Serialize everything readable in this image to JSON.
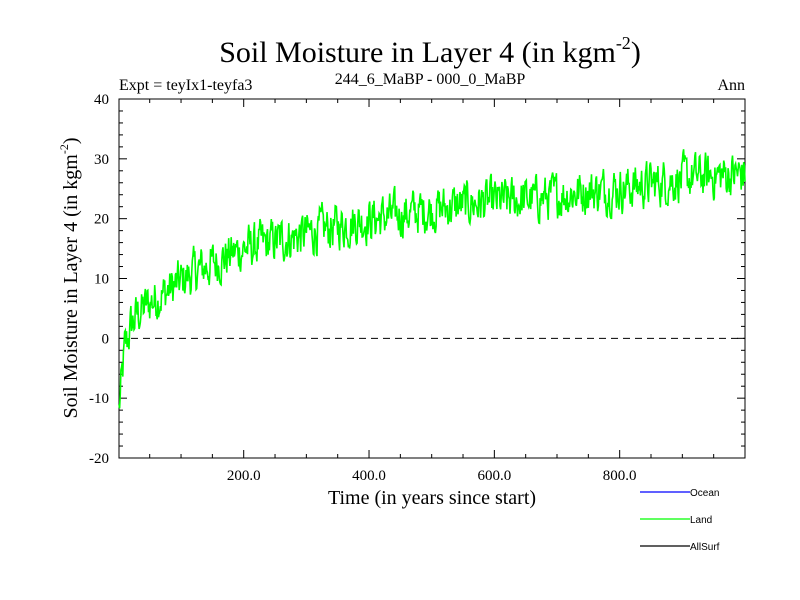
{
  "chart_data": {
    "type": "line",
    "title": "Soil Moisture in Layer 4 (in kgm",
    "title_superscript": "-2",
    "title_suffix": ")",
    "subtitle_left": "Expt = teyIx1-teyfa3",
    "subtitle_center": "244_6_MaBP - 000_0_MaBP",
    "subtitle_right": "Ann",
    "xlabel": "Time (in years since start)",
    "ylabel": "Soil Moisture in Layer 4 (in kgm",
    "ylabel_superscript": "-2",
    "ylabel_suffix": ")",
    "xlim": [
      1,
      1000
    ],
    "ylim": [
      -20,
      40
    ],
    "xticks": [
      200,
      400,
      600,
      800
    ],
    "xtick_labels": [
      "200.0",
      "400.0",
      "600.0",
      "800.0"
    ],
    "yticks": [
      -20,
      -10,
      0,
      10,
      20,
      30,
      40
    ],
    "ytick_labels": [
      "-20",
      "-10",
      "0",
      "10",
      "20",
      "30",
      "40"
    ],
    "zero_line": 0,
    "trend_anchors": {
      "x": [
        1,
        10,
        20,
        30,
        50,
        80,
        120,
        160,
        200,
        260,
        320,
        380,
        440,
        500,
        560,
        620,
        680,
        740,
        800,
        860,
        920,
        1000
      ],
      "y": [
        -12,
        -2,
        2,
        4,
        6,
        8,
        11,
        13,
        15,
        16.5,
        18,
        19.5,
        20.5,
        21.5,
        22.5,
        23,
        23.5,
        24.5,
        25,
        26,
        27,
        27.5
      ]
    },
    "noise_amplitude": 3.2,
    "series": [
      {
        "name": "Ocean",
        "color": "#0000ff",
        "shown": false
      },
      {
        "name": "Land",
        "color": "#00ff00",
        "shown": true
      },
      {
        "name": "AllSurf",
        "color": "#000000",
        "shown": false
      }
    ]
  }
}
